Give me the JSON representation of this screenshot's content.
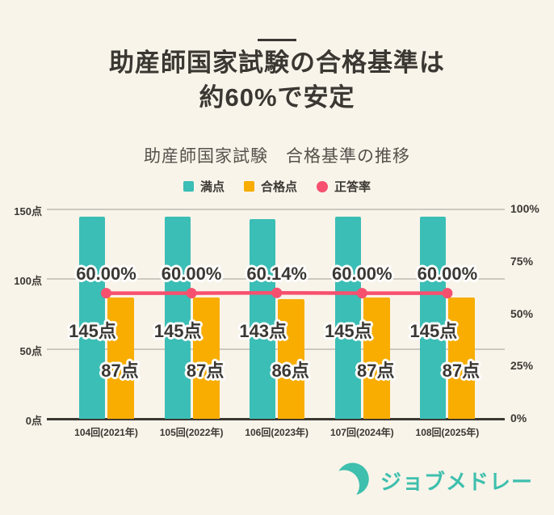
{
  "colors": {
    "background": "#F9F4EA",
    "text_dark": "#3B3833",
    "text_medium": "#55514A",
    "teal": "#3BBEB5",
    "orange": "#F8AD00",
    "pink": "#F7506F",
    "gridline": "#CCC9C1",
    "brand_teal": "#3FBFAD"
  },
  "header": {
    "title_line1": "助産師国家試験の合格基準は",
    "title_line2": "約60%で安定"
  },
  "chart_title": "助産師国家試験　合格基準の推移",
  "legend": [
    {
      "label": "満点",
      "color": "#3BBEB5",
      "shape": "square"
    },
    {
      "label": "合格点",
      "color": "#F8AD00",
      "shape": "square"
    },
    {
      "label": "正答率",
      "color": "#F7506F",
      "shape": "circle"
    }
  ],
  "chart_data": {
    "type": "bar+line",
    "title": "助産師国家試験　合格基準の推移",
    "categories": [
      "104回(2021年)",
      "105回(2022年)",
      "106回(2023年)",
      "107回(2024年)",
      "108回(2025年)"
    ],
    "series": [
      {
        "name": "満点",
        "type": "bar",
        "axis": "left",
        "unit": "点",
        "values": [
          145,
          145,
          143,
          145,
          145
        ],
        "labels": [
          "145点",
          "145点",
          "143点",
          "145点",
          "145点"
        ]
      },
      {
        "name": "合格点",
        "type": "bar",
        "axis": "left",
        "unit": "点",
        "values": [
          87,
          87,
          86,
          87,
          87
        ],
        "labels": [
          "87点",
          "87点",
          "86点",
          "87点",
          "87点"
        ]
      },
      {
        "name": "正答率",
        "type": "line",
        "axis": "right",
        "unit": "%",
        "values": [
          60.0,
          60.0,
          60.14,
          60.0,
          60.0
        ],
        "labels": [
          "60.00%",
          "60.00%",
          "60.14%",
          "60.00%",
          "60.00%"
        ]
      }
    ],
    "left_axis": {
      "ticks": [
        "150点",
        "100点",
        "50点",
        "0点"
      ],
      "values": [
        150,
        100,
        50,
        0
      ],
      "max": 150
    },
    "right_axis": {
      "ticks": [
        "100%",
        "75%",
        "50%",
        "25%",
        "0%"
      ],
      "values": [
        100,
        75,
        50,
        25,
        0
      ],
      "max": 100
    },
    "grid": "horizontal lines at left-axis tick positions",
    "legend_position": "top"
  },
  "footer": {
    "brand": "ジョブメドレー",
    "logo": "crescent-icon"
  }
}
